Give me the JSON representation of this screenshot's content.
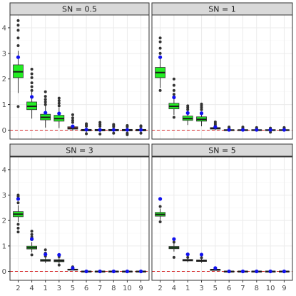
{
  "chart_data": {
    "type": "box",
    "title": "",
    "xlabel": "",
    "ylabel": "",
    "ylim": [
      -0.35,
      4.5
    ],
    "yticks": [
      0,
      1,
      2,
      3,
      4
    ],
    "reference_line": {
      "y": 0,
      "style": "dashed",
      "color": "#d62728"
    },
    "box_fill": {
      "first_four": "#22ee22",
      "rest": "#ff5050"
    },
    "mean_marker_color": "#1111ee",
    "outlier_color": "#333333",
    "categories": [
      "2",
      "4",
      "1",
      "3",
      "5",
      "6",
      "7",
      "8",
      "10",
      "9"
    ],
    "panels": [
      {
        "strip": "SN =  0.5",
        "boxes": [
          {
            "q1": 2.05,
            "median": 2.28,
            "q3": 2.55,
            "lower": 1.45,
            "upper": 3.1,
            "mean": 2.85,
            "outliers": [
              0.92,
              3.3,
              3.6,
              3.9,
              4.1,
              4.28
            ]
          },
          {
            "q1": 0.8,
            "median": 0.93,
            "q3": 1.1,
            "lower": 0.45,
            "upper": 1.5,
            "mean": 1.3,
            "outliers": [
              1.55,
              1.7,
              1.85,
              2.05,
              2.2,
              2.38
            ]
          },
          {
            "q1": 0.4,
            "median": 0.5,
            "q3": 0.62,
            "lower": 0.1,
            "upper": 0.95,
            "mean": 0.68,
            "outliers": [
              1.0,
              1.1,
              1.2,
              1.32,
              1.5
            ]
          },
          {
            "q1": 0.35,
            "median": 0.45,
            "q3": 0.58,
            "lower": 0.08,
            "upper": 0.88,
            "mean": 0.65,
            "outliers": [
              0.95,
              1.05,
              1.15,
              1.25
            ]
          },
          {
            "q1": 0.04,
            "median": 0.08,
            "q3": 0.13,
            "lower": -0.02,
            "upper": 0.22,
            "mean": 0.15,
            "outliers": [
              0.3,
              0.38,
              0.48,
              0.6
            ]
          },
          {
            "q1": -0.03,
            "median": 0.0,
            "q3": 0.03,
            "lower": -0.09,
            "upper": 0.1,
            "mean": 0.02,
            "outliers": [
              -0.14,
              0.15,
              0.2,
              0.25
            ]
          },
          {
            "q1": -0.03,
            "median": 0.0,
            "q3": 0.03,
            "lower": -0.09,
            "upper": 0.1,
            "mean": 0.01,
            "outliers": [
              -0.15,
              0.15,
              0.22,
              0.3
            ]
          },
          {
            "q1": -0.03,
            "median": 0.0,
            "q3": 0.03,
            "lower": -0.08,
            "upper": 0.09,
            "mean": 0.01,
            "outliers": [
              -0.12,
              0.13,
              0.18,
              0.22
            ]
          },
          {
            "q1": -0.03,
            "median": 0.0,
            "q3": 0.03,
            "lower": -0.08,
            "upper": 0.09,
            "mean": 0.01,
            "outliers": [
              -0.18,
              -0.12,
              0.13,
              0.18
            ]
          },
          {
            "q1": -0.03,
            "median": 0.0,
            "q3": 0.03,
            "lower": -0.08,
            "upper": 0.09,
            "mean": 0.01,
            "outliers": [
              -0.12,
              0.13,
              0.17
            ]
          }
        ]
      },
      {
        "strip": "SN =  1",
        "boxes": [
          {
            "q1": 2.05,
            "median": 2.25,
            "q3": 2.45,
            "lower": 1.65,
            "upper": 2.85,
            "mean": 2.85,
            "outliers": [
              1.55,
              3.0,
              3.2,
              3.45,
              3.6
            ]
          },
          {
            "q1": 0.83,
            "median": 0.93,
            "q3": 1.05,
            "lower": 0.6,
            "upper": 1.3,
            "mean": 1.28,
            "outliers": [
              0.5,
              1.4,
              1.55,
              1.75,
              2.0
            ]
          },
          {
            "q1": 0.38,
            "median": 0.45,
            "q3": 0.55,
            "lower": 0.2,
            "upper": 0.75,
            "mean": 0.67,
            "outliers": [
              0.8,
              0.88,
              0.95
            ]
          },
          {
            "q1": 0.35,
            "median": 0.42,
            "q3": 0.52,
            "lower": 0.15,
            "upper": 0.72,
            "mean": 0.66,
            "outliers": [
              0.8,
              0.88,
              0.95,
              1.02
            ]
          },
          {
            "q1": 0.04,
            "median": 0.07,
            "q3": 0.1,
            "lower": 0.0,
            "upper": 0.16,
            "mean": 0.12,
            "outliers": [
              0.2,
              0.25,
              0.32
            ]
          },
          {
            "q1": -0.02,
            "median": 0.0,
            "q3": 0.02,
            "lower": -0.05,
            "upper": 0.05,
            "mean": 0.01,
            "outliers": [
              0.08,
              0.12
            ]
          },
          {
            "q1": -0.02,
            "median": 0.0,
            "q3": 0.02,
            "lower": -0.05,
            "upper": 0.05,
            "mean": 0.01,
            "outliers": [
              0.08,
              0.12
            ]
          },
          {
            "q1": -0.02,
            "median": 0.0,
            "q3": 0.02,
            "lower": -0.05,
            "upper": 0.05,
            "mean": 0.01,
            "outliers": [
              0.07,
              0.1
            ]
          },
          {
            "q1": -0.02,
            "median": 0.0,
            "q3": 0.02,
            "lower": -0.05,
            "upper": 0.05,
            "mean": 0.01,
            "outliers": [
              -0.08,
              0.08
            ]
          },
          {
            "q1": -0.02,
            "median": 0.0,
            "q3": 0.02,
            "lower": -0.05,
            "upper": 0.05,
            "mean": 0.01,
            "outliers": [
              0.08,
              0.1
            ]
          }
        ]
      },
      {
        "strip": "SN = 3",
        "boxes": [
          {
            "q1": 2.15,
            "median": 2.25,
            "q3": 2.35,
            "lower": 1.95,
            "upper": 2.6,
            "mean": 2.85,
            "outliers": [
              1.55,
              1.7,
              1.85,
              2.7,
              2.85,
              2.95,
              3.0
            ]
          },
          {
            "q1": 0.88,
            "median": 0.93,
            "q3": 0.99,
            "lower": 0.75,
            "upper": 1.15,
            "mean": 1.27,
            "outliers": [
              0.65,
              1.25,
              1.35,
              1.45,
              1.58
            ]
          },
          {
            "q1": 0.4,
            "median": 0.43,
            "q3": 0.47,
            "lower": 0.33,
            "upper": 0.55,
            "mean": 0.67,
            "outliers": [
              0.6,
              0.72,
              0.85
            ]
          },
          {
            "q1": 0.38,
            "median": 0.42,
            "q3": 0.46,
            "lower": 0.3,
            "upper": 0.54,
            "mean": 0.65,
            "outliers": [
              0.25,
              0.58,
              0.65
            ]
          },
          {
            "q1": 0.06,
            "median": 0.07,
            "q3": 0.09,
            "lower": 0.04,
            "upper": 0.11,
            "mean": 0.13,
            "outliers": [
              0.15,
              0.18
            ]
          },
          {
            "q1": -0.01,
            "median": 0.0,
            "q3": 0.01,
            "lower": -0.02,
            "upper": 0.02,
            "mean": 0.0,
            "outliers": []
          },
          {
            "q1": -0.01,
            "median": 0.0,
            "q3": 0.01,
            "lower": -0.02,
            "upper": 0.02,
            "mean": 0.0,
            "outliers": []
          },
          {
            "q1": -0.01,
            "median": 0.0,
            "q3": 0.01,
            "lower": -0.02,
            "upper": 0.02,
            "mean": 0.0,
            "outliers": []
          },
          {
            "q1": -0.01,
            "median": 0.0,
            "q3": 0.01,
            "lower": -0.02,
            "upper": 0.02,
            "mean": 0.0,
            "outliers": []
          },
          {
            "q1": -0.01,
            "median": 0.0,
            "q3": 0.01,
            "lower": -0.02,
            "upper": 0.02,
            "mean": 0.0,
            "outliers": []
          }
        ]
      },
      {
        "strip": "SN = 5",
        "boxes": [
          {
            "q1": 2.17,
            "median": 2.24,
            "q3": 2.32,
            "lower": 2.02,
            "upper": 2.47,
            "mean": 2.85,
            "outliers": [
              1.95,
              2.55
            ]
          },
          {
            "q1": 0.89,
            "median": 0.93,
            "q3": 0.98,
            "lower": 0.78,
            "upper": 1.1,
            "mean": 1.27,
            "outliers": [
              0.55,
              1.15,
              1.25
            ]
          },
          {
            "q1": 0.41,
            "median": 0.44,
            "q3": 0.47,
            "lower": 0.36,
            "upper": 0.52,
            "mean": 0.67,
            "outliers": [
              0.55
            ]
          },
          {
            "q1": 0.39,
            "median": 0.42,
            "q3": 0.45,
            "lower": 0.34,
            "upper": 0.5,
            "mean": 0.66,
            "outliers": [
              0.54
            ]
          },
          {
            "q1": 0.06,
            "median": 0.07,
            "q3": 0.08,
            "lower": 0.05,
            "upper": 0.1,
            "mean": 0.13,
            "outliers": []
          },
          {
            "q1": -0.01,
            "median": 0.0,
            "q3": 0.01,
            "lower": -0.02,
            "upper": 0.02,
            "mean": 0.0,
            "outliers": []
          },
          {
            "q1": -0.01,
            "median": 0.0,
            "q3": 0.01,
            "lower": -0.02,
            "upper": 0.02,
            "mean": 0.0,
            "outliers": []
          },
          {
            "q1": -0.01,
            "median": 0.0,
            "q3": 0.01,
            "lower": -0.02,
            "upper": 0.02,
            "mean": 0.0,
            "outliers": []
          },
          {
            "q1": -0.01,
            "median": 0.0,
            "q3": 0.01,
            "lower": -0.02,
            "upper": 0.02,
            "mean": 0.0,
            "outliers": []
          },
          {
            "q1": -0.01,
            "median": 0.0,
            "q3": 0.01,
            "lower": -0.02,
            "upper": 0.02,
            "mean": 0.0,
            "outliers": []
          }
        ]
      }
    ]
  }
}
